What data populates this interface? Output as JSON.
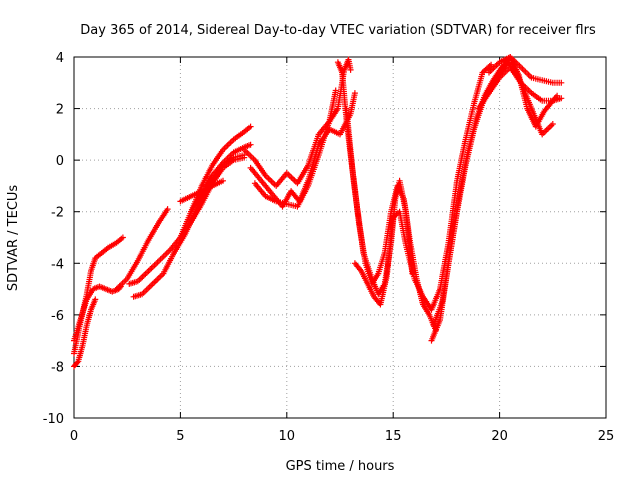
{
  "chart_data": {
    "type": "scatter",
    "title": "Day 365 of 2014, Sidereal Day-to-day VTEC variation (SDTVAR) for receiver flrs",
    "xlabel": "GPS time / hours",
    "ylabel": "SDTVAR / TECUs",
    "xlim": [
      0,
      25
    ],
    "ylim": [
      -10,
      4
    ],
    "xticks": [
      0,
      5,
      10,
      15,
      20,
      25
    ],
    "yticks": [
      -10,
      -8,
      -6,
      -4,
      -2,
      0,
      2,
      4
    ],
    "grid": true,
    "marker": "plus",
    "series_color": "#ff0000",
    "series": [
      {
        "x": [
          0.0,
          0.3,
          0.6,
          0.9,
          1.2,
          1.5,
          1.8,
          2.1,
          2.2
        ],
        "y": [
          -7.0,
          -6.2,
          -5.4,
          -5.0,
          -4.9,
          -5.0,
          -5.1,
          -5.0,
          -4.9
        ]
      },
      {
        "x": [
          0.0,
          0.3,
          0.6,
          0.8,
          1.0,
          1.3,
          1.6,
          2.0,
          2.3
        ],
        "y": [
          -7.5,
          -6.3,
          -5.2,
          -4.3,
          -3.8,
          -3.6,
          -3.4,
          -3.2,
          -3.0
        ]
      },
      {
        "x": [
          0.0,
          0.2,
          0.4,
          0.6,
          0.8,
          1.0
        ],
        "y": [
          -8.0,
          -7.8,
          -7.2,
          -6.4,
          -5.8,
          -5.4
        ]
      },
      {
        "x": [
          2.0,
          2.5,
          3.0,
          3.5,
          4.0,
          4.4
        ],
        "y": [
          -5.0,
          -4.6,
          -3.9,
          -3.1,
          -2.4,
          -1.9
        ]
      },
      {
        "x": [
          2.6,
          3.0,
          3.5,
          4.0,
          4.5,
          5.0,
          5.5,
          6.0,
          6.5,
          7.0,
          7.5,
          8.0
        ],
        "y": [
          -4.8,
          -4.7,
          -4.3,
          -3.9,
          -3.5,
          -3.0,
          -2.4,
          -1.7,
          -0.9,
          -0.3,
          0.0,
          0.1
        ]
      },
      {
        "x": [
          2.8,
          3.2,
          3.7,
          4.2,
          4.7,
          5.2,
          5.6,
          6.0,
          6.5,
          7.0,
          7.5,
          8.0
        ],
        "y": [
          -5.3,
          -5.2,
          -4.8,
          -4.4,
          -3.6,
          -2.9,
          -2.2,
          -1.5,
          -0.8,
          -0.2,
          0.1,
          0.2
        ]
      },
      {
        "x": [
          5.0,
          5.5,
          6.0,
          6.5,
          7.0,
          7.5,
          8.0,
          8.3
        ],
        "y": [
          -3.0,
          -2.0,
          -1.0,
          -0.2,
          0.4,
          0.8,
          1.1,
          1.3
        ]
      },
      {
        "x": [
          5.5,
          6.0,
          6.5,
          7.0,
          7.5,
          8.0,
          8.3
        ],
        "y": [
          -2.0,
          -1.3,
          -0.6,
          -0.1,
          0.3,
          0.5,
          0.6
        ]
      },
      {
        "x": [
          5.0,
          5.5,
          6.0,
          6.5,
          7.0
        ],
        "y": [
          -1.6,
          -1.4,
          -1.2,
          -1.0,
          -0.8
        ]
      },
      {
        "x": [
          8.0,
          8.5,
          9.0,
          9.5,
          10.0,
          10.5,
          11.0,
          11.5,
          12.0,
          12.4,
          12.7,
          12.9,
          13.0
        ],
        "y": [
          0.4,
          0.0,
          -0.6,
          -1.0,
          -0.5,
          -0.9,
          -0.2,
          1.0,
          1.5,
          2.0,
          3.5,
          3.9,
          3.5
        ]
      },
      {
        "x": [
          8.3,
          8.8,
          9.3,
          9.8,
          10.2,
          10.6,
          11.0,
          11.5,
          12.0,
          12.5,
          13.0,
          13.2
        ],
        "y": [
          -0.3,
          -0.8,
          -1.3,
          -1.8,
          -1.2,
          -1.6,
          -0.8,
          0.6,
          1.2,
          1.0,
          1.8,
          2.6
        ]
      },
      {
        "x": [
          8.5,
          9.0,
          9.5,
          10.0,
          10.5,
          11.0,
          11.5,
          12.0,
          12.3
        ],
        "y": [
          -0.9,
          -1.4,
          -1.6,
          -1.7,
          -1.8,
          -1.0,
          0.2,
          1.5,
          2.7
        ]
      },
      {
        "x": [
          12.4,
          12.6,
          12.8,
          13.0,
          13.3,
          13.6,
          14.0,
          14.3,
          14.6,
          14.9,
          15.1,
          15.3,
          15.6,
          15.9
        ],
        "y": [
          3.8,
          3.4,
          1.6,
          0.2,
          -1.8,
          -3.6,
          -4.6,
          -5.2,
          -4.8,
          -3.2,
          -1.5,
          -0.8,
          -2.0,
          -4.4
        ]
      },
      {
        "x": [
          12.8,
          13.1,
          13.4,
          13.7,
          14.0,
          14.3,
          14.6,
          14.9,
          15.2,
          15.5,
          15.8,
          16.1,
          16.4,
          16.7,
          17.0
        ],
        "y": [
          2.0,
          -0.5,
          -2.5,
          -4.0,
          -4.8,
          -4.4,
          -3.6,
          -2.0,
          -1.0,
          -1.5,
          -3.2,
          -4.6,
          -5.6,
          -6.0,
          -6.6
        ]
      },
      {
        "x": [
          13.2,
          13.5,
          13.8,
          14.1,
          14.4,
          14.7,
          15.0,
          15.3,
          15.6,
          16.0,
          16.4,
          16.8,
          17.2,
          17.6,
          18.0,
          18.4,
          18.8,
          19.2,
          19.6
        ],
        "y": [
          -4.0,
          -4.3,
          -4.8,
          -5.3,
          -5.6,
          -4.5,
          -2.2,
          -2.0,
          -3.3,
          -4.6,
          -5.3,
          -5.8,
          -5.0,
          -3.2,
          -0.8,
          0.8,
          2.2,
          3.4,
          3.7
        ]
      },
      {
        "x": [
          16.8,
          17.2,
          17.6,
          18.0,
          18.4,
          18.8,
          19.2,
          19.6,
          20.0,
          20.4,
          20.8,
          21.2,
          21.6,
          22.0,
          22.5
        ],
        "y": [
          -7.0,
          -6.2,
          -4.0,
          -2.0,
          -0.2,
          1.2,
          2.2,
          2.9,
          3.3,
          3.8,
          3.4,
          2.6,
          1.8,
          1.0,
          1.4
        ]
      },
      {
        "x": [
          16.9,
          17.3,
          17.7,
          18.1,
          18.5,
          18.9,
          19.3,
          19.7,
          20.1,
          20.5,
          20.9,
          21.3,
          21.7,
          22.1,
          22.7
        ],
        "y": [
          -6.4,
          -5.5,
          -3.5,
          -1.4,
          0.3,
          1.6,
          2.5,
          3.1,
          3.6,
          4.0,
          3.3,
          2.0,
          1.3,
          1.9,
          2.5
        ]
      },
      {
        "x": [
          19.5,
          20.0,
          20.5,
          21.0,
          21.5,
          22.0,
          22.5,
          22.9
        ],
        "y": [
          3.4,
          3.8,
          4.0,
          3.6,
          3.2,
          3.1,
          3.0,
          3.0
        ]
      },
      {
        "x": [
          19.0,
          19.5,
          20.0,
          20.5,
          21.0,
          21.5,
          22.0,
          22.5,
          22.9
        ],
        "y": [
          2.0,
          2.6,
          3.2,
          3.6,
          3.0,
          2.6,
          2.3,
          2.3,
          2.4
        ]
      }
    ]
  }
}
